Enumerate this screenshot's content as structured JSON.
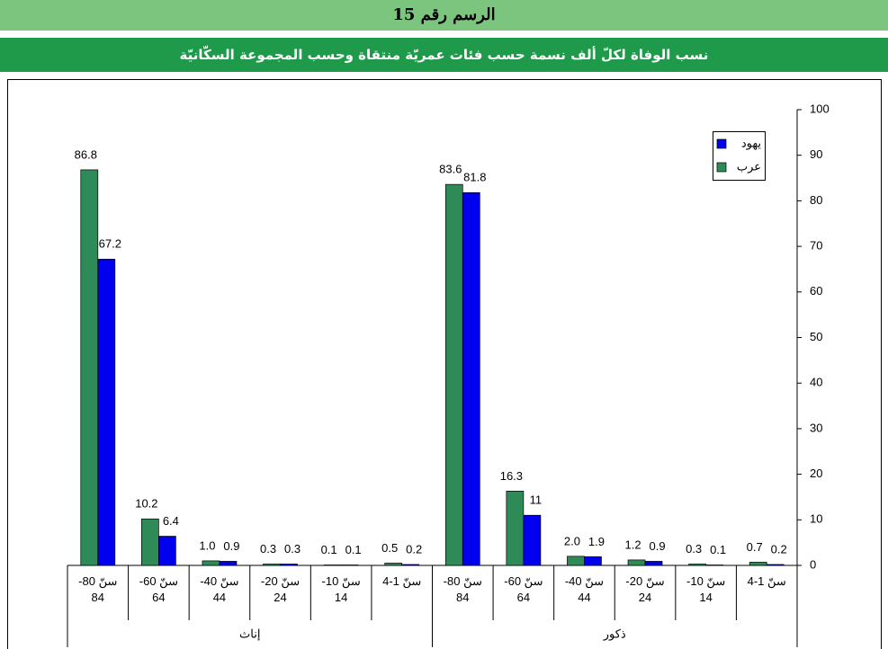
{
  "header": {
    "title": "الرسم رقم 15",
    "subtitle": "نسب الوفاة لكلّ ألف نسمة حسب فئات عمريّة منتقاة وحسب المجموعة السكّانيّة"
  },
  "chart_data": {
    "type": "bar",
    "categories": [
      "سنّ 80-84",
      "سنّ 60-64",
      "سنّ 40-44",
      "سنّ 20-24",
      "سنّ 10-14",
      "سنّ 1-4",
      "سنّ 80-84",
      "سنّ 60-64",
      "سنّ 40-44",
      "سنّ 20-24",
      "سنّ 10-14",
      "سنّ 1-4"
    ],
    "groups": [
      "إناث",
      "ذكور"
    ],
    "series": [
      {
        "name": "عرب",
        "color": "#2e8b57",
        "values": [
          86.8,
          10.2,
          1.0,
          0.3,
          0.1,
          0.5,
          83.6,
          16.3,
          2.0,
          1.2,
          0.3,
          0.7
        ],
        "value_labels": [
          "86.8",
          "10.2",
          "1.0",
          "0.3",
          "0.1",
          "0.5",
          "83.6",
          "16.3",
          "2.0",
          "1.2",
          "0.3",
          "0.7"
        ]
      },
      {
        "name": "يهود",
        "color": "#0000ee",
        "values": [
          67.2,
          6.4,
          0.9,
          0.3,
          0.1,
          0.2,
          81.8,
          11,
          1.9,
          0.9,
          0.1,
          0.2
        ],
        "value_labels": [
          "67.2",
          "6.4",
          "0.9",
          "0.3",
          "0.1",
          "0.2",
          "81.8",
          "11",
          "1.9",
          "0.9",
          "0.1",
          "0.2"
        ]
      }
    ],
    "ylim": [
      0,
      100
    ],
    "yticks": [
      0,
      10,
      20,
      30,
      40,
      50,
      60,
      70,
      80,
      90,
      100
    ],
    "y_axis_side": "right",
    "legend": "top-right"
  }
}
